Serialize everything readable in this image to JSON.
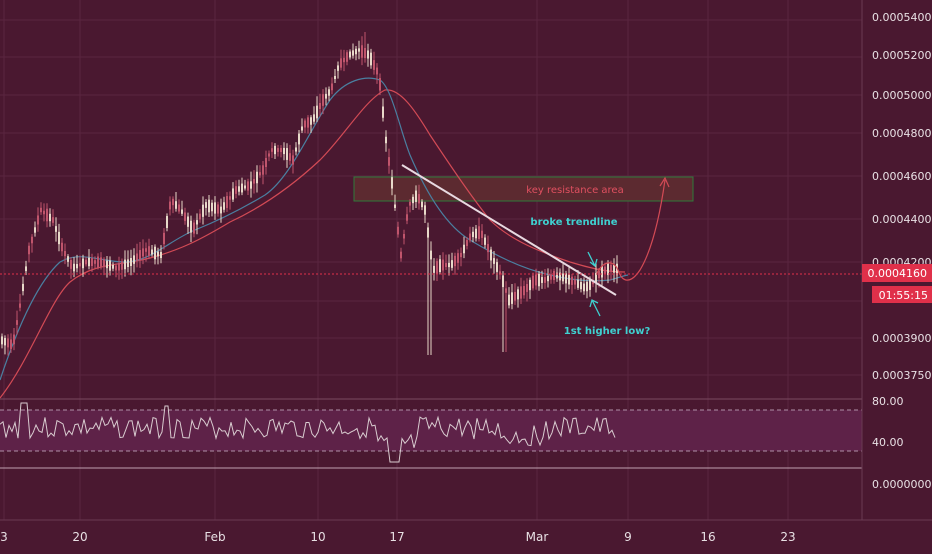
{
  "colors": {
    "background": "#4a1830",
    "grid": "#5c2a42",
    "up_candle": "#e8d9c9",
    "down_candle": "#c0556c",
    "ma_fast": "#4a7fa0",
    "ma_slow": "#d24a55",
    "rsi_line": "#d9ccd0",
    "rsi_band": "#5e2248",
    "resistance_fill": "#5c2a30",
    "resistance_border": "#2e7a3a",
    "current_price_bg": "#e0304a",
    "annotation_text": "#3fd0d0",
    "trendline": "#e8d9e0",
    "axis_text": "#e8e0e4"
  },
  "price_axis": {
    "labels": [
      "0.0005400",
      "0.0005200",
      "0.0005000",
      "0.0004800",
      "0.0004600",
      "0.0004400",
      "0.0004200",
      "0.0003900",
      "0.0003750"
    ],
    "current_price": "0.0004160",
    "countdown": "01:55:15"
  },
  "rsi_axis": {
    "labels": [
      "80.00",
      "40.00",
      "0.0000000"
    ]
  },
  "time_axis": {
    "labels": [
      "3",
      "20",
      "Feb",
      "10",
      "17",
      "Mar",
      "9",
      "16",
      "23"
    ]
  },
  "annotations": {
    "resistance_label": "key resistance area",
    "broke_trendline": "broke trendline",
    "higher_low": "1st higher low?"
  }
}
